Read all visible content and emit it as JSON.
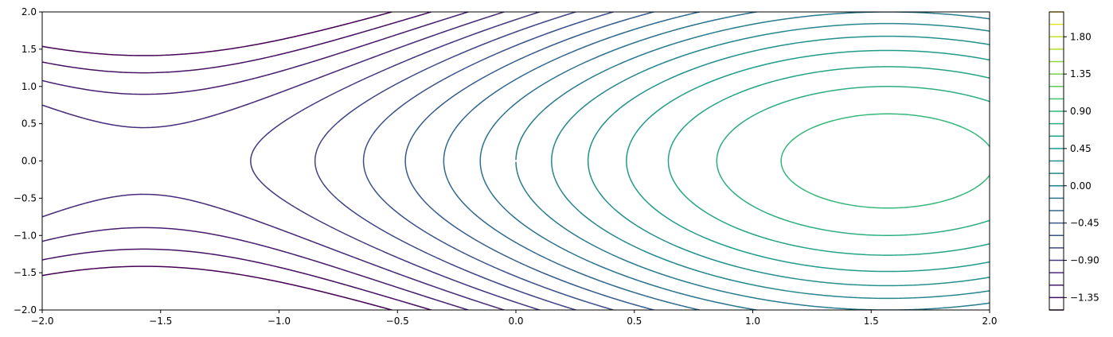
{
  "chart_data": {
    "type": "contour",
    "title": "",
    "xlabel": "",
    "ylabel": "",
    "xlim": [
      -2.0,
      2.0
    ],
    "ylim": [
      -2.0,
      2.0
    ],
    "x_ticks": [
      -2.0,
      -1.5,
      -1.0,
      -0.5,
      0.0,
      0.5,
      1.0,
      1.5,
      2.0
    ],
    "x_tick_labels": [
      "−2.0",
      "−1.5",
      "−1.0",
      "−0.5",
      "0.0",
      "0.5",
      "1.0",
      "1.5",
      "2.0"
    ],
    "y_ticks": [
      -2.0,
      -1.5,
      -1.0,
      -0.5,
      0.0,
      0.5,
      1.0,
      1.5,
      2.0
    ],
    "y_tick_labels": [
      "−2.0",
      "−1.5",
      "−1.0",
      "−0.5",
      "0.0",
      "0.5",
      "1.0",
      "1.5",
      "2.0"
    ],
    "field": "sin(x) - y^2 / 4",
    "levels": [
      -1.5,
      -1.35,
      -1.2,
      -1.05,
      -0.9,
      -0.75,
      -0.6,
      -0.45,
      -0.3,
      -0.15,
      0.0,
      0.15,
      0.3,
      0.45,
      0.6,
      0.75,
      0.9,
      1.05,
      1.2,
      1.35,
      1.5,
      1.65,
      1.8,
      1.95,
      2.1
    ],
    "colorbar": {
      "tick_values": [
        -1.35,
        -0.9,
        -0.45,
        0.0,
        0.45,
        0.9,
        1.35,
        1.8
      ],
      "tick_labels": [
        "−1.35",
        "−0.90",
        "−0.45",
        "0.00",
        "0.45",
        "0.90",
        "1.35",
        "1.80"
      ]
    },
    "colormap": "viridis",
    "colormap_stops": [
      "#440154",
      "#482878",
      "#3e4989",
      "#31688e",
      "#26828e",
      "#1f9e89",
      "#35b779",
      "#6ece58",
      "#b5de2b",
      "#fde725"
    ],
    "grid": false,
    "legend": "none"
  }
}
